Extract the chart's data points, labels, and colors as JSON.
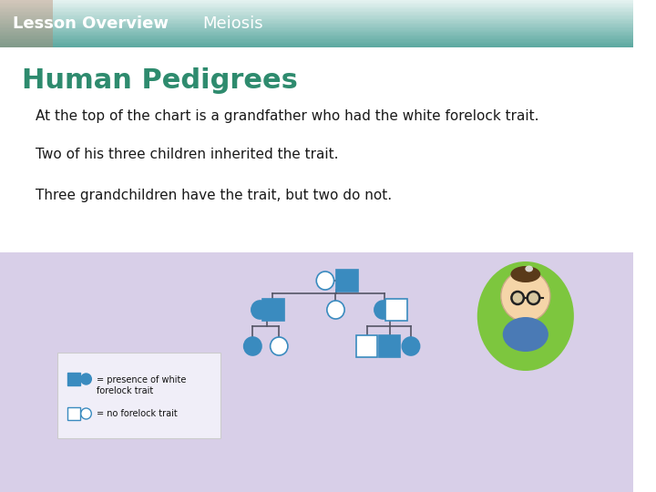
{
  "title": "Human Pedigrees",
  "header_left": "Lesson Overview",
  "header_center": "Meiosis",
  "header_bg_color_top": "#5ba8a0",
  "header_bg_color_bottom": "#e8f4f2",
  "body_bg_color": "#ffffff",
  "lower_bg_color": "#d8cfe8",
  "title_color": "#2e8b6e",
  "title_fontsize": 22,
  "header_text_color": "#ffffff",
  "header_fontsize": 13,
  "body_text_color": "#1a1a1a",
  "body_fontsize": 11,
  "line1": "At the top of the chart is a grandfather who had the white forelock trait.",
  "line2": "Two of his three children inherited the trait.",
  "line3": "Three grandchildren have the trait, but two do not.",
  "trait_color": "#3a8bbf",
  "no_trait_outline": "#3a8bbf",
  "legend_bg": "#f0eef8",
  "line_color": "#555566",
  "face_skin": "#f5d5a8",
  "hair_color": "#5a3a1a",
  "shirt_color": "#4a7ab5",
  "green_oval": "#7dc63e"
}
